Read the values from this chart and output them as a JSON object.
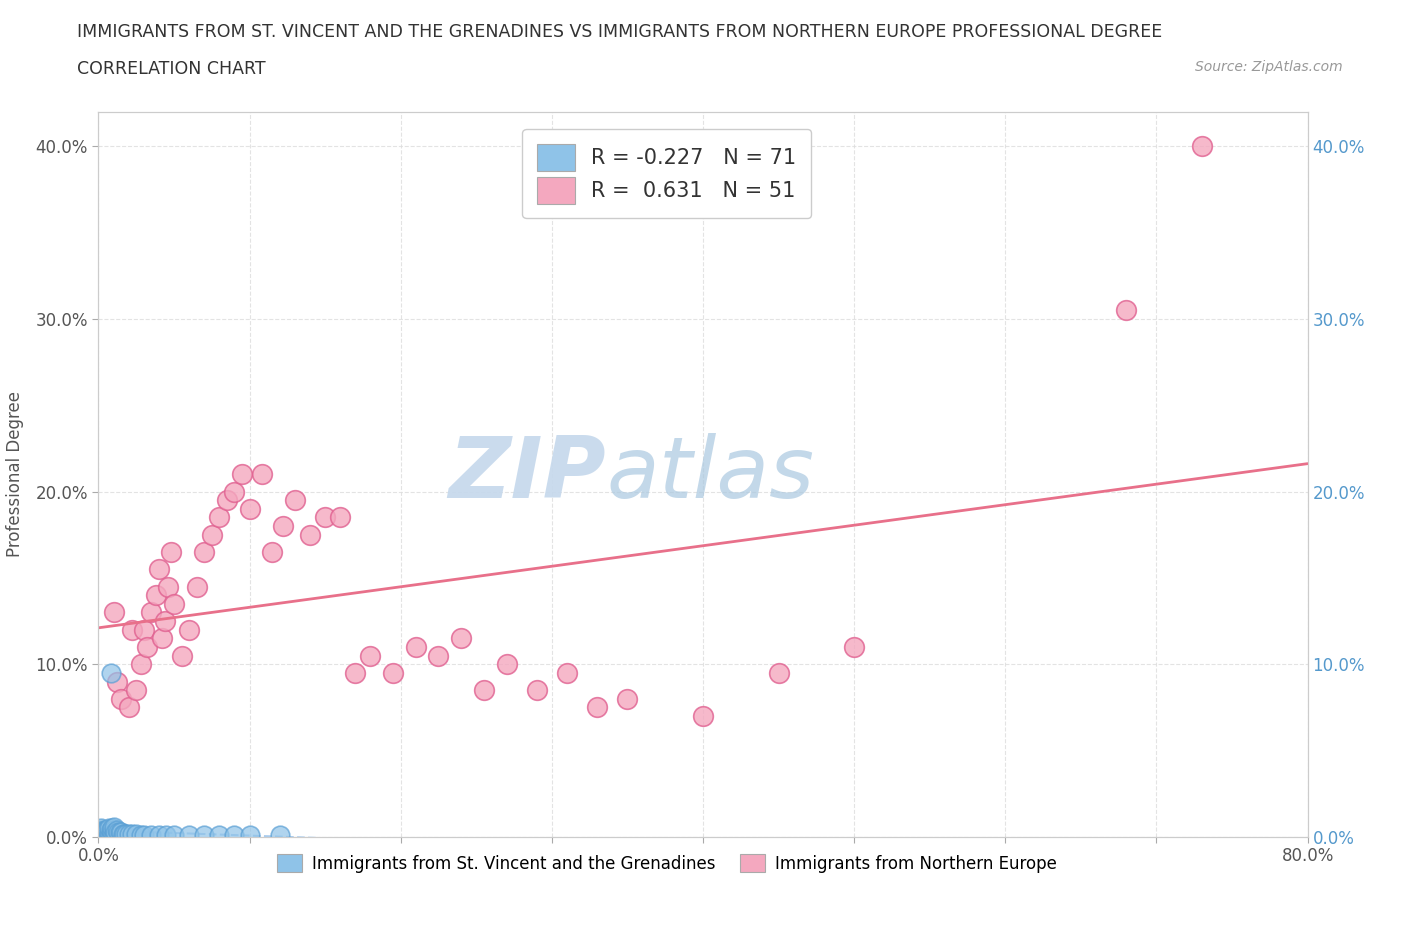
{
  "title_line1": "IMMIGRANTS FROM ST. VINCENT AND THE GRENADINES VS IMMIGRANTS FROM NORTHERN EUROPE PROFESSIONAL DEGREE",
  "title_line2": "CORRELATION CHART",
  "source_text": "Source: ZipAtlas.com",
  "ylabel": "Professional Degree",
  "watermark_zip": "ZIP",
  "watermark_atlas": "atlas",
  "xlim": [
    0.0,
    0.8
  ],
  "ylim": [
    0.0,
    0.42
  ],
  "xtick_positions": [
    0.0,
    0.1,
    0.2,
    0.3,
    0.4,
    0.5,
    0.6,
    0.7,
    0.8
  ],
  "xtick_labels_sparse": [
    "0.0%",
    "",
    "",
    "",
    "",
    "",
    "",
    "",
    "80.0%"
  ],
  "ytick_positions": [
    0.0,
    0.1,
    0.2,
    0.3,
    0.4
  ],
  "ytick_labels_left": [
    "0.0%",
    "10.0%",
    "20.0%",
    "30.0%",
    "40.0%"
  ],
  "ytick_labels_right": [
    "0.0%",
    "10.0%",
    "20.0%",
    "30.0%",
    "40.0%"
  ],
  "blue_R": -0.227,
  "blue_N": 71,
  "pink_R": 0.631,
  "pink_N": 51,
  "blue_color": "#8fc3e8",
  "blue_edge_color": "#5a9fd4",
  "pink_color": "#f4a8bf",
  "pink_edge_color": "#e06090",
  "blue_line_color": "#aaccee",
  "pink_line_color": "#e8708a",
  "legend_label_blue": "Immigrants from St. Vincent and the Grenadines",
  "legend_label_pink": "Immigrants from Northern Europe",
  "title_color": "#333333",
  "axis_label_color": "#555555",
  "grid_color": "#dddddd",
  "right_tick_color": "#5599cc",
  "background_color": "#ffffff",
  "watermark_color": "#c5d8ec",
  "blue_line_intercept": 0.025,
  "blue_line_slope": -0.03,
  "pink_line_intercept": 0.0,
  "pink_line_slope": 0.47,
  "blue_x": [
    0.001,
    0.001,
    0.001,
    0.001,
    0.001,
    0.001,
    0.001,
    0.001,
    0.001,
    0.001,
    0.002,
    0.002,
    0.002,
    0.002,
    0.002,
    0.002,
    0.002,
    0.002,
    0.002,
    0.002,
    0.003,
    0.003,
    0.003,
    0.003,
    0.003,
    0.004,
    0.004,
    0.004,
    0.004,
    0.004,
    0.005,
    0.005,
    0.005,
    0.005,
    0.006,
    0.006,
    0.006,
    0.007,
    0.007,
    0.007,
    0.008,
    0.008,
    0.009,
    0.009,
    0.01,
    0.01,
    0.01,
    0.011,
    0.012,
    0.013,
    0.014,
    0.015,
    0.016,
    0.017,
    0.018,
    0.02,
    0.022,
    0.025,
    0.028,
    0.03,
    0.035,
    0.04,
    0.045,
    0.05,
    0.06,
    0.07,
    0.08,
    0.09,
    0.1,
    0.12,
    0.008
  ],
  "blue_y": [
    0.0,
    0.0,
    0.0,
    0.0,
    0.0,
    0.001,
    0.001,
    0.001,
    0.002,
    0.002,
    0.0,
    0.0,
    0.001,
    0.001,
    0.002,
    0.002,
    0.003,
    0.003,
    0.004,
    0.005,
    0.001,
    0.001,
    0.002,
    0.002,
    0.003,
    0.001,
    0.002,
    0.002,
    0.003,
    0.004,
    0.001,
    0.002,
    0.003,
    0.004,
    0.002,
    0.003,
    0.004,
    0.002,
    0.003,
    0.005,
    0.002,
    0.004,
    0.003,
    0.005,
    0.002,
    0.004,
    0.006,
    0.003,
    0.004,
    0.003,
    0.003,
    0.003,
    0.002,
    0.002,
    0.002,
    0.002,
    0.002,
    0.002,
    0.001,
    0.001,
    0.001,
    0.001,
    0.001,
    0.001,
    0.001,
    0.001,
    0.001,
    0.001,
    0.001,
    0.001,
    0.095
  ],
  "pink_x": [
    0.01,
    0.012,
    0.015,
    0.02,
    0.022,
    0.025,
    0.028,
    0.03,
    0.032,
    0.035,
    0.038,
    0.04,
    0.042,
    0.044,
    0.046,
    0.048,
    0.05,
    0.055,
    0.06,
    0.065,
    0.07,
    0.075,
    0.08,
    0.085,
    0.09,
    0.095,
    0.1,
    0.108,
    0.115,
    0.122,
    0.13,
    0.14,
    0.15,
    0.16,
    0.17,
    0.18,
    0.195,
    0.21,
    0.225,
    0.24,
    0.255,
    0.27,
    0.29,
    0.31,
    0.33,
    0.35,
    0.4,
    0.45,
    0.5,
    0.68,
    0.73
  ],
  "pink_y": [
    0.13,
    0.09,
    0.08,
    0.075,
    0.12,
    0.085,
    0.1,
    0.12,
    0.11,
    0.13,
    0.14,
    0.155,
    0.115,
    0.125,
    0.145,
    0.165,
    0.135,
    0.105,
    0.12,
    0.145,
    0.165,
    0.175,
    0.185,
    0.195,
    0.2,
    0.21,
    0.19,
    0.21,
    0.165,
    0.18,
    0.195,
    0.175,
    0.185,
    0.185,
    0.095,
    0.105,
    0.095,
    0.11,
    0.105,
    0.115,
    0.085,
    0.1,
    0.085,
    0.095,
    0.075,
    0.08,
    0.07,
    0.095,
    0.11,
    0.305,
    0.4
  ]
}
